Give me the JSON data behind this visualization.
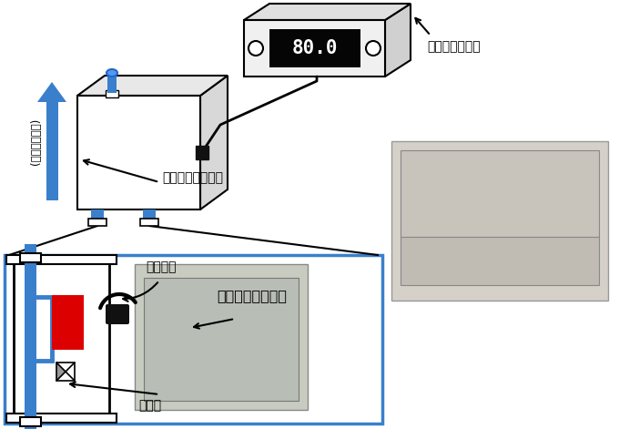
{
  "bg_color": "#ffffff",
  "fig_width": 6.8,
  "fig_height": 4.71,
  "dpi": 100,
  "controller_label": "コントローラー",
  "sensor_unit_label": "センサーユニット",
  "sensor_label": "センサー",
  "valve_label": "バルブ",
  "diamond_label": "ダイヤモンド電極",
  "sample_flow_label": "(サンプル流れ)",
  "display_value": "80.0",
  "blue": "#3a7fcc",
  "red": "#cc0000",
  "black": "#000000",
  "gray_top": "#e0e0e0",
  "gray_right": "#c8c8c8",
  "ctrl_gray": "#f0f0f0"
}
